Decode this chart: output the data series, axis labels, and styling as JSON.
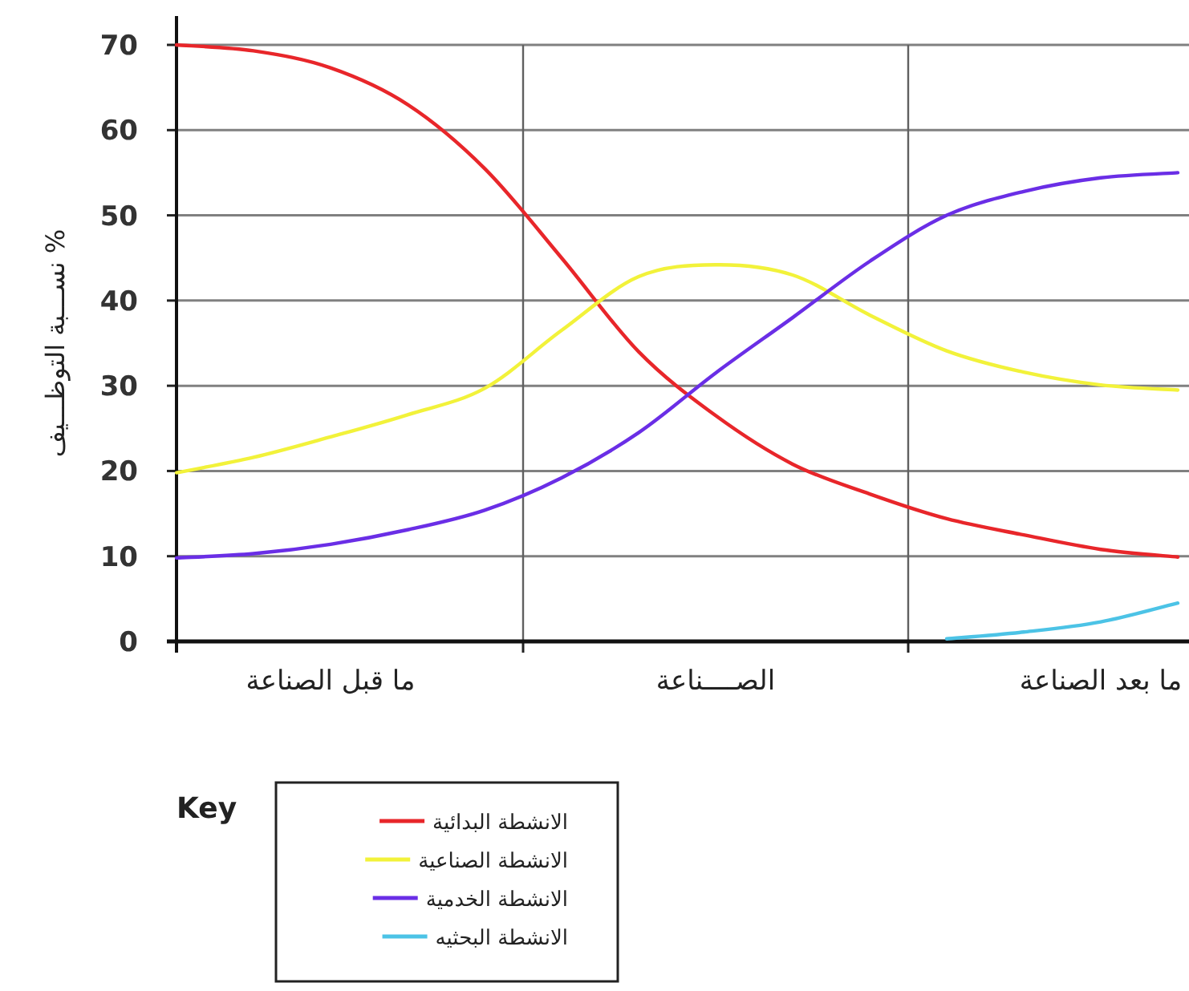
{
  "chart_data": {
    "type": "line",
    "ylabel": "% نســـبة التوظـــيف",
    "legend_title": "Key",
    "legend": "bottom left",
    "grid": true,
    "categories": [
      null,
      null,
      "ما قبل الصناعة",
      null,
      null,
      null,
      null,
      "الصــــناعة",
      null,
      null,
      null,
      null,
      "ما بعد الصناعة",
      null
    ],
    "ylim": [
      0,
      70
    ],
    "yticks": [
      0,
      10,
      20,
      30,
      40,
      50,
      60,
      70
    ],
    "series": [
      {
        "name": "الانشطة البدائية",
        "color": "#e8262a",
        "values": [
          70,
          69.3,
          67.3,
          63,
          55.5,
          45,
          34,
          26.5,
          20.8,
          17.3,
          14.4,
          12.5,
          10.8,
          9.9
        ]
      },
      {
        "name": "الانشطة الصناعية",
        "color": "#f2f23a",
        "values": [
          19.8,
          21.6,
          24,
          26.6,
          29.7,
          36.5,
          42.8,
          44.2,
          43,
          38.3,
          34.1,
          31.6,
          30.1,
          29.5
        ]
      },
      {
        "name": "الانشطة الخدمية",
        "color": "#6a2ee6",
        "values": [
          9.8,
          10.3,
          11.4,
          13.1,
          15.4,
          19.2,
          24.5,
          31.5,
          38,
          44.6,
          50,
          52.8,
          54.4,
          55
        ]
      },
      {
        "name": "الانشطة البحثيه",
        "color": "#4cc3e6",
        "values": [
          null,
          null,
          null,
          null,
          null,
          null,
          null,
          null,
          null,
          null,
          0.3,
          1.1,
          2.3,
          4.5
        ]
      }
    ]
  }
}
